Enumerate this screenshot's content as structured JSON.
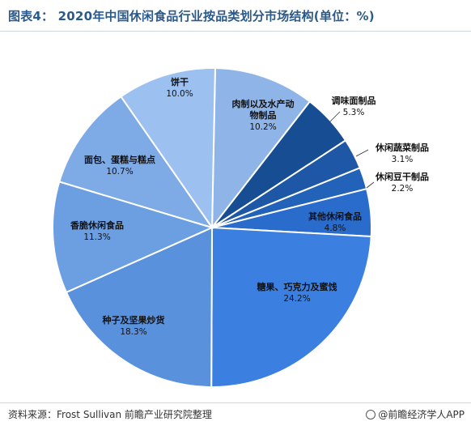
{
  "title": "图表4：  2020年中国休闲食品行业按品类划分市场结构(单位：%)",
  "source": "资料来源：Frost Sullivan 前瞻产业研究院整理",
  "brand": "@前瞻经济学人APP",
  "chart_data": {
    "type": "pie",
    "unit": "%",
    "slices": [
      {
        "label": "肉制以及水产动物制品",
        "value": 10.2,
        "color": "#8fb4e8"
      },
      {
        "label": "调味面制品",
        "value": 5.3,
        "color": "#174d92"
      },
      {
        "label": "休闲蔬菜制品",
        "value": 3.1,
        "color": "#1d57a6"
      },
      {
        "label": "休闲豆干制品",
        "value": 2.2,
        "color": "#2262b8"
      },
      {
        "label": "其他休闲食品",
        "value": 4.8,
        "color": "#2a6ccc"
      },
      {
        "label": "糖果、巧克力及蜜饯",
        "value": 24.2,
        "color": "#3b7fe0"
      },
      {
        "label": "种子及坚果炒货",
        "value": 18.3,
        "color": "#5a91dc"
      },
      {
        "label": "香脆休闲食品",
        "value": 11.3,
        "color": "#6c9fe2"
      },
      {
        "label": "面包、蛋糕与糕点",
        "value": 10.7,
        "color": "#7eaae6"
      },
      {
        "label": "饼干",
        "value": 10.0,
        "color": "#9cc0ef"
      }
    ]
  }
}
